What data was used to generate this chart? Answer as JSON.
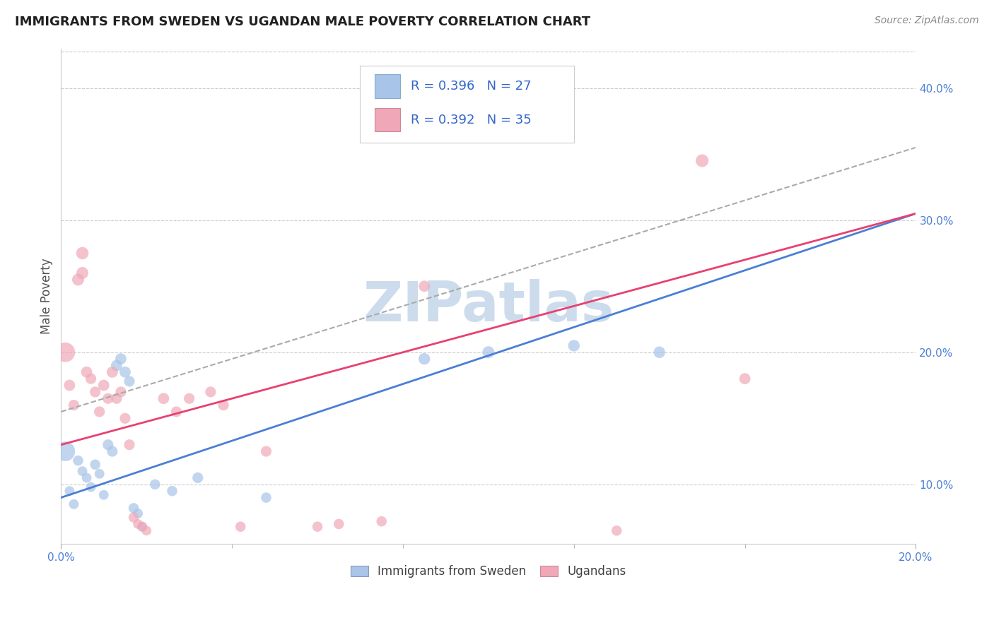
{
  "title": "IMMIGRANTS FROM SWEDEN VS UGANDAN MALE POVERTY CORRELATION CHART",
  "source": "Source: ZipAtlas.com",
  "ylabel": "Male Poverty",
  "legend_label_1": "Immigrants from Sweden",
  "legend_label_2": "Ugandans",
  "R1": 0.396,
  "N1": 27,
  "R2": 0.392,
  "N2": 35,
  "xlim": [
    0.0,
    0.2
  ],
  "ylim": [
    0.055,
    0.43
  ],
  "yticks_right": [
    0.1,
    0.2,
    0.3,
    0.4
  ],
  "color_blue": "#a8c4e8",
  "color_pink": "#f0a8b8",
  "color_blue_line": "#4a7fd4",
  "color_pink_line": "#e84070",
  "color_dashed": "#aaaaaa",
  "background": "#ffffff",
  "watermark": "ZIPatlas",
  "watermark_color": "#ccdcec",
  "blue_line": [
    0.0,
    0.09,
    0.2,
    0.305
  ],
  "pink_line": [
    0.0,
    0.13,
    0.2,
    0.305
  ],
  "dashed_line": [
    0.0,
    0.155,
    0.2,
    0.355
  ],
  "scatter_blue": [
    [
      0.001,
      0.125
    ],
    [
      0.002,
      0.095
    ],
    [
      0.003,
      0.085
    ],
    [
      0.004,
      0.118
    ],
    [
      0.005,
      0.11
    ],
    [
      0.006,
      0.105
    ],
    [
      0.007,
      0.098
    ],
    [
      0.008,
      0.115
    ],
    [
      0.009,
      0.108
    ],
    [
      0.01,
      0.092
    ],
    [
      0.011,
      0.13
    ],
    [
      0.012,
      0.125
    ],
    [
      0.013,
      0.19
    ],
    [
      0.014,
      0.195
    ],
    [
      0.015,
      0.185
    ],
    [
      0.016,
      0.178
    ],
    [
      0.017,
      0.082
    ],
    [
      0.018,
      0.078
    ],
    [
      0.019,
      0.068
    ],
    [
      0.022,
      0.1
    ],
    [
      0.026,
      0.095
    ],
    [
      0.032,
      0.105
    ],
    [
      0.048,
      0.09
    ],
    [
      0.085,
      0.195
    ],
    [
      0.1,
      0.2
    ],
    [
      0.12,
      0.205
    ],
    [
      0.14,
      0.2
    ]
  ],
  "scatter_pink": [
    [
      0.001,
      0.2
    ],
    [
      0.002,
      0.175
    ],
    [
      0.003,
      0.16
    ],
    [
      0.004,
      0.255
    ],
    [
      0.005,
      0.275
    ],
    [
      0.005,
      0.26
    ],
    [
      0.006,
      0.185
    ],
    [
      0.007,
      0.18
    ],
    [
      0.008,
      0.17
    ],
    [
      0.009,
      0.155
    ],
    [
      0.01,
      0.175
    ],
    [
      0.011,
      0.165
    ],
    [
      0.012,
      0.185
    ],
    [
      0.013,
      0.165
    ],
    [
      0.014,
      0.17
    ],
    [
      0.015,
      0.15
    ],
    [
      0.016,
      0.13
    ],
    [
      0.017,
      0.075
    ],
    [
      0.018,
      0.07
    ],
    [
      0.019,
      0.068
    ],
    [
      0.02,
      0.065
    ],
    [
      0.024,
      0.165
    ],
    [
      0.027,
      0.155
    ],
    [
      0.03,
      0.165
    ],
    [
      0.035,
      0.17
    ],
    [
      0.038,
      0.16
    ],
    [
      0.042,
      0.068
    ],
    [
      0.048,
      0.125
    ],
    [
      0.06,
      0.068
    ],
    [
      0.065,
      0.07
    ],
    [
      0.075,
      0.072
    ],
    [
      0.085,
      0.25
    ],
    [
      0.13,
      0.065
    ],
    [
      0.15,
      0.345
    ],
    [
      0.16,
      0.18
    ]
  ],
  "scatter_blue_sizes": [
    120,
    100,
    100,
    110,
    100,
    100,
    100,
    110,
    100,
    100,
    120,
    120,
    130,
    130,
    130,
    120,
    110,
    100,
    100,
    110,
    110,
    120,
    110,
    140,
    150,
    140,
    140
  ],
  "scatter_pink_sizes": [
    140,
    130,
    120,
    150,
    160,
    150,
    130,
    120,
    120,
    120,
    130,
    120,
    130,
    120,
    120,
    120,
    120,
    110,
    100,
    100,
    100,
    130,
    120,
    120,
    120,
    120,
    110,
    120,
    110,
    110,
    110,
    130,
    110,
    170,
    130
  ],
  "cluster_blue_big": [
    0
  ],
  "cluster_pink_big": [
    0
  ]
}
